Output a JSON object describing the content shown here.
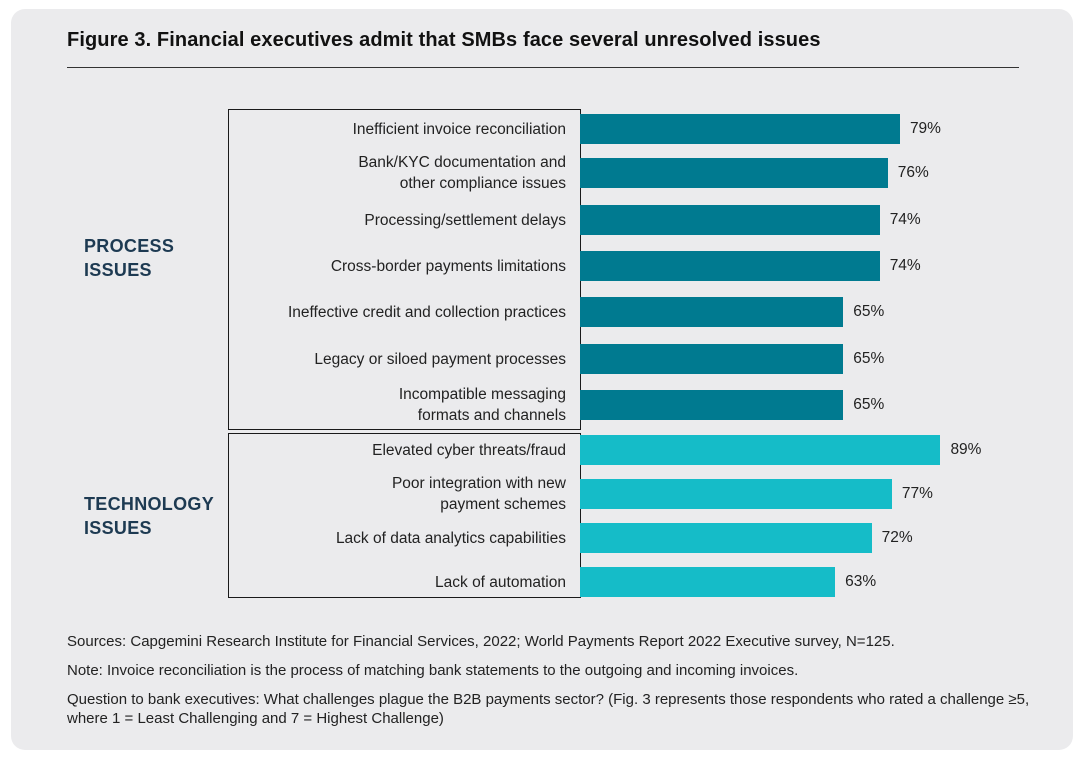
{
  "title": "Figure 3. Financial executives admit that SMBs face several unresolved issues",
  "groups": {
    "process": "PROCESS\nISSUES",
    "technology": "TECHNOLOGY\nISSUES"
  },
  "colors": {
    "process": "#007a90",
    "technology": "#15bcc8"
  },
  "chart_data": {
    "type": "bar",
    "orientation": "horizontal",
    "xlim": [
      0,
      100
    ],
    "unit": "%",
    "categories": [
      "Inefficient invoice reconciliation",
      "Bank/KYC documentation and\nother compliance issues",
      "Processing/settlement delays",
      "Cross-border payments limitations",
      "Ineffective credit and collection practices",
      "Legacy or siloed payment processes",
      "Incompatible messaging\nformats and channels",
      "Elevated cyber threats/fraud",
      "Poor integration with new\npayment schemes",
      "Lack of data analytics capabilities",
      "Lack of automation"
    ],
    "values": [
      79,
      76,
      74,
      74,
      65,
      65,
      65,
      89,
      77,
      72,
      63
    ],
    "value_labels": [
      "79%",
      "76%",
      "74%",
      "74%",
      "65%",
      "65%",
      "65%",
      "89%",
      "77%",
      "72%",
      "63%"
    ],
    "group": [
      "process",
      "process",
      "process",
      "process",
      "process",
      "process",
      "process",
      "technology",
      "technology",
      "technology",
      "technology"
    ],
    "grid": false,
    "legend": "none"
  },
  "notes": {
    "sources": "Sources: Capgemini Research Institute for Financial Services, 2022; World Payments Report 2022 Executive survey, N=125.",
    "note": "Note: Invoice reconciliation is the process of matching bank statements to the outgoing and incoming invoices.",
    "question": "Question to bank executives: What challenges plague the B2B payments sector? (Fig. 3 represents those respondents who rated a challenge ≥5, where 1 = Least Challenging and 7 = Highest Challenge)"
  }
}
